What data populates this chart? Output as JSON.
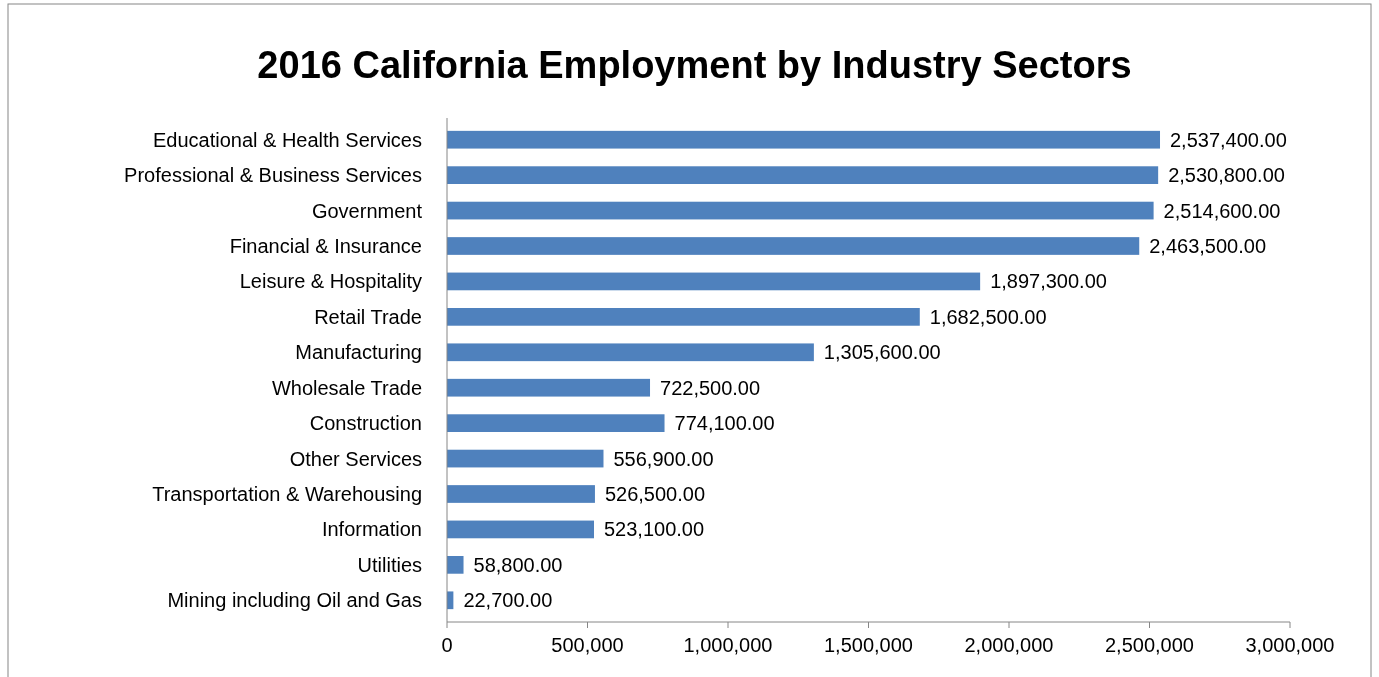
{
  "chart_data": {
    "type": "bar",
    "title": "2016 California Employment by Industry Sectors",
    "orientation": "horizontal",
    "categories": [
      "Educational & Health Services",
      "Professional & Business Services",
      "Government",
      "Financial & Insurance",
      "Leisure & Hospitality",
      "Retail Trade",
      "Manufacturing",
      "Wholesale Trade",
      "Construction",
      "Other Services",
      "Transportation & Warehousing",
      "Information",
      "Utilities",
      "Mining including Oil and Gas"
    ],
    "values": [
      2537400,
      2530800,
      2514600,
      2463500,
      1897300,
      1682500,
      1305600,
      722500,
      774100,
      556900,
      526500,
      523100,
      58800,
      22700
    ],
    "value_labels": [
      "2,537,400.00",
      "2,530,800.00",
      "2,514,600.00",
      "2,463,500.00",
      "1,897,300.00",
      "1,682,500.00",
      "1,305,600.00",
      "722,500.00",
      "774,100.00",
      "556,900.00",
      "526,500.00",
      "523,100.00",
      "58,800.00",
      "22,700.00"
    ],
    "color": "#4f81bd",
    "xlim": [
      0,
      3000000
    ],
    "xticks": [
      0,
      {
        "value": 500000,
        "label": "500,000"
      },
      {
        "value": 1000000,
        "label": "1,000,000"
      },
      {
        "value": 1500000,
        "label": "1,500,000"
      },
      {
        "value": 2000000,
        "label": "2,000,000"
      },
      {
        "value": 2500000,
        "label": "2,500,000"
      },
      {
        "value": 3000000,
        "label": "3,000,000"
      }
    ],
    "grid": false
  }
}
